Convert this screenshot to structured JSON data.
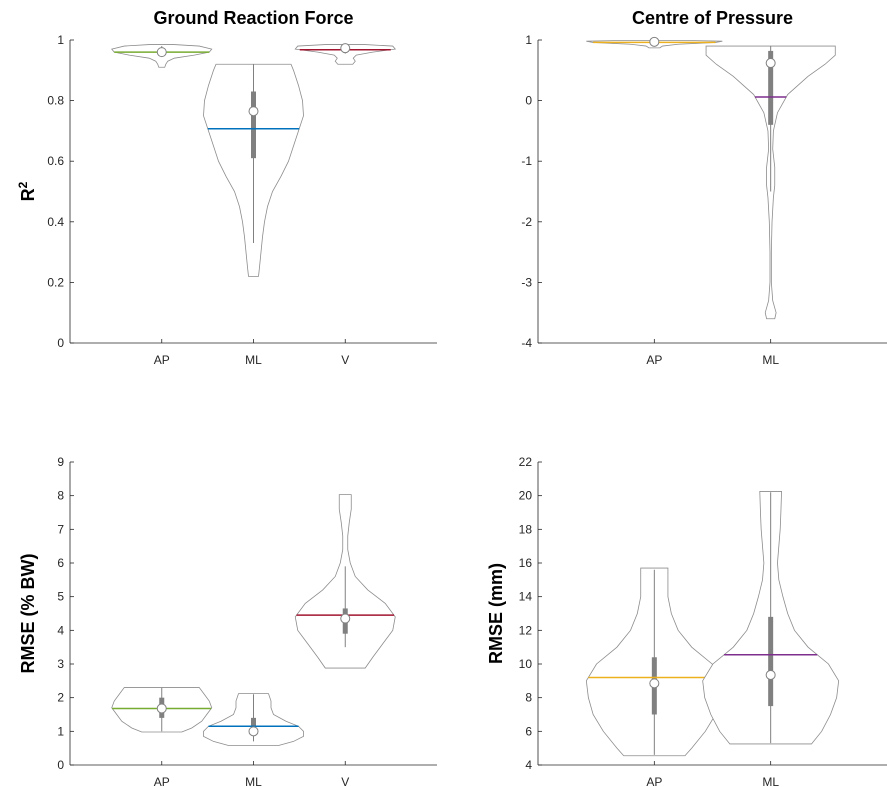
{
  "chart_data": [
    {
      "type": "violin",
      "title": "Ground Reaction Force",
      "ylabel": "R",
      "ylabel_superscript": "2",
      "ylim": [
        0,
        1
      ],
      "yticks": [
        0,
        0.2,
        0.4,
        0.6,
        0.8,
        1
      ],
      "ytick_labels": [
        "0",
        "0.2",
        "0.4",
        "0.6",
        "0.8",
        "1"
      ],
      "categories": [
        "AP",
        "ML",
        "V"
      ],
      "violins": [
        {
          "category": "AP",
          "color": "#77ac30",
          "mean": 0.96,
          "median": 0.96,
          "q1": 0.955,
          "q3": 0.97,
          "whisker_low": 0.945,
          "whisker_high": 0.98,
          "min": 0.91,
          "max": 0.985,
          "profile": [
            [
              0.91,
              0.06
            ],
            [
              0.92,
              0.08
            ],
            [
              0.93,
              0.12
            ],
            [
              0.94,
              0.25
            ],
            [
              0.95,
              0.65
            ],
            [
              0.96,
              0.95
            ],
            [
              0.97,
              1.0
            ],
            [
              0.98,
              0.75
            ],
            [
              0.985,
              0.25
            ]
          ]
        },
        {
          "category": "ML",
          "color": "#0072bd",
          "mean": 0.707,
          "median": 0.765,
          "q1": 0.61,
          "q3": 0.83,
          "whisker_low": 0.33,
          "whisker_high": 0.92,
          "min": 0.22,
          "max": 0.92,
          "profile": [
            [
              0.22,
              0.1
            ],
            [
              0.25,
              0.12
            ],
            [
              0.3,
              0.15
            ],
            [
              0.35,
              0.18
            ],
            [
              0.4,
              0.22
            ],
            [
              0.45,
              0.28
            ],
            [
              0.5,
              0.38
            ],
            [
              0.55,
              0.55
            ],
            [
              0.6,
              0.7
            ],
            [
              0.65,
              0.8
            ],
            [
              0.7,
              0.9
            ],
            [
              0.75,
              1.0
            ],
            [
              0.8,
              0.98
            ],
            [
              0.85,
              0.9
            ],
            [
              0.9,
              0.8
            ],
            [
              0.92,
              0.75
            ]
          ]
        },
        {
          "category": "V",
          "color": "#a2142f",
          "mean": 0.968,
          "median": 0.973,
          "q1": 0.965,
          "q3": 0.98,
          "whisker_low": 0.955,
          "whisker_high": 0.985,
          "min": 0.92,
          "max": 0.985,
          "profile": [
            [
              0.92,
              0.15
            ],
            [
              0.93,
              0.2
            ],
            [
              0.94,
              0.16
            ],
            [
              0.95,
              0.22
            ],
            [
              0.96,
              0.55
            ],
            [
              0.97,
              1.0
            ],
            [
              0.98,
              0.95
            ],
            [
              0.985,
              0.4
            ]
          ]
        }
      ]
    },
    {
      "type": "violin",
      "title": "Centre of Pressure",
      "ylabel": "",
      "ylim": [
        -4,
        1
      ],
      "yticks": [
        -4,
        -3,
        -2,
        -1,
        0,
        1
      ],
      "ytick_labels": [
        "-4",
        "-3",
        "-2",
        "-1",
        "0",
        "1"
      ],
      "categories": [
        "AP",
        "ML"
      ],
      "violins": [
        {
          "category": "AP",
          "color": "#edb120",
          "mean": 0.96,
          "median": 0.97,
          "q1": 0.95,
          "q3": 0.98,
          "whisker_low": 0.9,
          "whisker_high": 0.99,
          "min": 0.87,
          "max": 0.99,
          "profile": [
            [
              0.87,
              0.08
            ],
            [
              0.9,
              0.12
            ],
            [
              0.93,
              0.35
            ],
            [
              0.96,
              0.9
            ],
            [
              0.98,
              1.0
            ],
            [
              0.99,
              0.6
            ]
          ]
        },
        {
          "category": "ML",
          "color": "#7e2f8e",
          "mean": 0.06,
          "median": 0.62,
          "q1": -0.4,
          "q3": 0.82,
          "whisker_low": -1.5,
          "whisker_high": 0.9,
          "min": -3.6,
          "max": 0.9,
          "profile": [
            [
              -3.6,
              0.06
            ],
            [
              -3.5,
              0.08
            ],
            [
              -3.3,
              0.03
            ],
            [
              -3.0,
              0.01
            ],
            [
              -2.5,
              0.01
            ],
            [
              -2.0,
              0.02
            ],
            [
              -1.6,
              0.04
            ],
            [
              -1.4,
              0.06
            ],
            [
              -1.1,
              0.06
            ],
            [
              -0.8,
              0.03
            ],
            [
              -0.5,
              0.04
            ],
            [
              -0.2,
              0.1
            ],
            [
              0.1,
              0.25
            ],
            [
              0.4,
              0.55
            ],
            [
              0.6,
              0.8
            ],
            [
              0.75,
              0.95
            ],
            [
              0.9,
              0.95
            ]
          ]
        }
      ]
    },
    {
      "type": "violin",
      "title": "",
      "ylabel": "RMSE (% BW)",
      "ylim": [
        0,
        9
      ],
      "yticks": [
        0,
        1,
        2,
        3,
        4,
        5,
        6,
        7,
        8,
        9
      ],
      "ytick_labels": [
        "0",
        "1",
        "2",
        "3",
        "4",
        "5",
        "6",
        "7",
        "8",
        "9"
      ],
      "categories": [
        "AP",
        "ML",
        "V"
      ],
      "violins": [
        {
          "category": "AP",
          "color": "#77ac30",
          "mean": 1.68,
          "median": 1.68,
          "q1": 1.4,
          "q3": 2.0,
          "whisker_low": 1.0,
          "whisker_high": 2.3,
          "min": 0.98,
          "max": 2.3,
          "profile": [
            [
              0.98,
              0.4
            ],
            [
              1.1,
              0.6
            ],
            [
              1.3,
              0.8
            ],
            [
              1.5,
              0.9
            ],
            [
              1.7,
              1.0
            ],
            [
              1.9,
              0.95
            ],
            [
              2.1,
              0.85
            ],
            [
              2.3,
              0.75
            ]
          ]
        },
        {
          "category": "ML",
          "color": "#0072bd",
          "mean": 1.15,
          "median": 1.0,
          "q1": 0.9,
          "q3": 1.4,
          "whisker_low": 0.7,
          "whisker_high": 2.1,
          "min": 0.58,
          "max": 2.12,
          "profile": [
            [
              0.58,
              0.5
            ],
            [
              0.7,
              0.8
            ],
            [
              0.85,
              1.0
            ],
            [
              1.0,
              1.0
            ],
            [
              1.15,
              0.9
            ],
            [
              1.3,
              0.65
            ],
            [
              1.5,
              0.4
            ],
            [
              1.7,
              0.35
            ],
            [
              1.9,
              0.35
            ],
            [
              2.12,
              0.3
            ]
          ]
        },
        {
          "category": "V",
          "color": "#a2142f",
          "mean": 4.45,
          "median": 4.35,
          "q1": 3.9,
          "q3": 4.65,
          "whisker_low": 3.5,
          "whisker_high": 5.9,
          "min": 2.88,
          "max": 8.03,
          "profile": [
            [
              2.88,
              0.4
            ],
            [
              3.2,
              0.55
            ],
            [
              3.6,
              0.75
            ],
            [
              4.0,
              0.95
            ],
            [
              4.4,
              1.0
            ],
            [
              4.8,
              0.8
            ],
            [
              5.2,
              0.45
            ],
            [
              5.6,
              0.2
            ],
            [
              6.0,
              0.1
            ],
            [
              6.4,
              0.05
            ],
            [
              6.8,
              0.05
            ],
            [
              7.2,
              0.08
            ],
            [
              7.6,
              0.12
            ],
            [
              8.03,
              0.12
            ]
          ]
        }
      ]
    },
    {
      "type": "violin",
      "title": "",
      "ylabel": "RMSE (mm)",
      "ylim": [
        4,
        22
      ],
      "yticks": [
        4,
        6,
        8,
        10,
        12,
        14,
        16,
        18,
        20,
        22
      ],
      "ytick_labels": [
        "4",
        "6",
        "8",
        "10",
        "12",
        "14",
        "16",
        "18",
        "20",
        "22"
      ],
      "categories": [
        "AP",
        "ML"
      ],
      "violins": [
        {
          "category": "AP",
          "color": "#edb120",
          "mean": 9.2,
          "median": 8.85,
          "q1": 7.0,
          "q3": 10.4,
          "whisker_low": 4.6,
          "whisker_high": 15.6,
          "min": 4.55,
          "max": 15.7,
          "profile": [
            [
              4.55,
              0.45
            ],
            [
              5.0,
              0.55
            ],
            [
              6.0,
              0.75
            ],
            [
              7.0,
              0.9
            ],
            [
              8.0,
              0.97
            ],
            [
              9.0,
              1.0
            ],
            [
              10.0,
              0.85
            ],
            [
              11.0,
              0.55
            ],
            [
              12.0,
              0.35
            ],
            [
              13.0,
              0.25
            ],
            [
              14.0,
              0.2
            ],
            [
              15.0,
              0.2
            ],
            [
              15.7,
              0.2
            ]
          ]
        },
        {
          "category": "ML",
          "color": "#7e2f8e",
          "mean": 10.55,
          "median": 9.35,
          "q1": 7.5,
          "q3": 12.8,
          "whisker_low": 5.3,
          "whisker_high": 20.2,
          "min": 5.25,
          "max": 20.25,
          "profile": [
            [
              5.25,
              0.6
            ],
            [
              6.0,
              0.75
            ],
            [
              7.0,
              0.88
            ],
            [
              8.0,
              0.97
            ],
            [
              9.0,
              1.0
            ],
            [
              10.0,
              0.85
            ],
            [
              11.0,
              0.55
            ],
            [
              12.0,
              0.35
            ],
            [
              13.0,
              0.25
            ],
            [
              14.0,
              0.18
            ],
            [
              15.0,
              0.12
            ],
            [
              16.0,
              0.1
            ],
            [
              17.0,
              0.12
            ],
            [
              18.0,
              0.14
            ],
            [
              19.0,
              0.15
            ],
            [
              20.25,
              0.16
            ]
          ]
        }
      ]
    }
  ]
}
